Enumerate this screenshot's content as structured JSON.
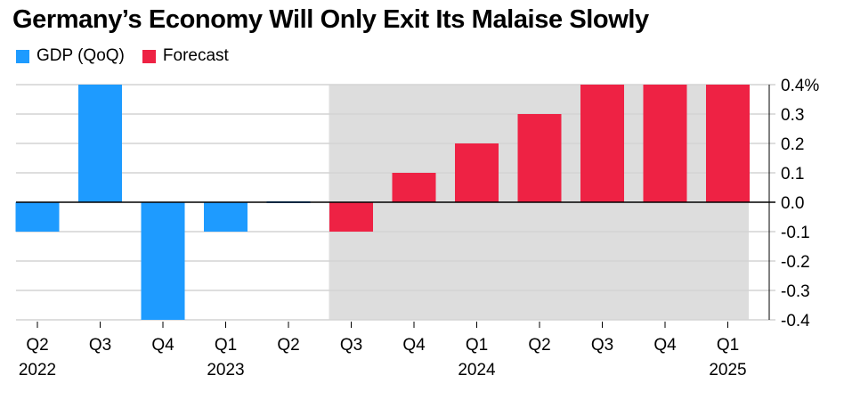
{
  "chart_data": {
    "type": "bar",
    "title": "Germany’s Economy Will Only Exit Its Malaise Slowly",
    "legend": [
      {
        "label": "GDP (QoQ)",
        "color": "#1e9bff"
      },
      {
        "label": "Forecast",
        "color": "#ee2244"
      }
    ],
    "categories": [
      "Q2",
      "Q3",
      "Q4",
      "Q1",
      "Q2",
      "Q3",
      "Q4",
      "Q1",
      "Q2",
      "Q3",
      "Q4",
      "Q1"
    ],
    "year_labels": [
      "2022",
      "",
      "",
      "2023",
      "",
      "",
      "",
      "2024",
      "",
      "",
      "",
      "2025"
    ],
    "series": [
      {
        "name": "GDP (QoQ)",
        "values": [
          -0.1,
          0.4,
          -0.4,
          -0.1,
          0.0,
          null,
          null,
          null,
          null,
          null,
          null,
          null
        ]
      },
      {
        "name": "Forecast",
        "values": [
          null,
          null,
          null,
          null,
          null,
          -0.1,
          0.1,
          0.2,
          0.3,
          0.4,
          0.4,
          0.4
        ]
      }
    ],
    "forecast_start_index": 5,
    "ylim": [
      -0.4,
      0.4
    ],
    "yticks": [
      0.4,
      0.3,
      0.2,
      0.1,
      0.0,
      -0.1,
      -0.2,
      -0.3,
      -0.4
    ],
    "ytick_labels": [
      "0.4%",
      "0.3",
      "0.2",
      "0.1",
      "0.0",
      "-0.1",
      "-0.2",
      "-0.3",
      "-0.4"
    ],
    "xlabel": "",
    "ylabel": "",
    "grid": true,
    "colors": {
      "gdp": "#1e9bff",
      "forecast": "#ee2244",
      "shade": "#dddddd",
      "grid": "#d4d4d4"
    }
  }
}
